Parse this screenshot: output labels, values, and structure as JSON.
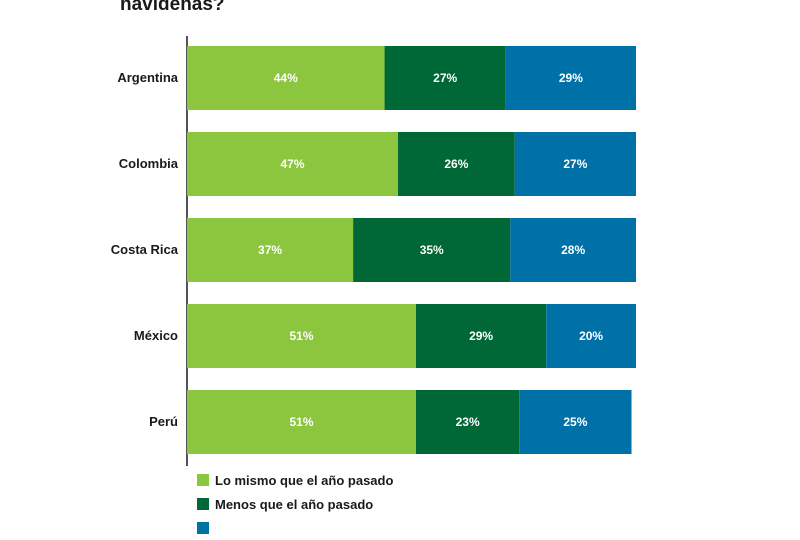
{
  "title": "navideñas?",
  "chart_data": {
    "type": "bar",
    "orientation": "horizontal",
    "stacked": true,
    "categories": [
      "Argentina",
      "Colombia",
      "Costa Rica",
      "México",
      "Perú"
    ],
    "series": [
      {
        "name": "Lo mismo que el año pasado",
        "color": "#8cc63f",
        "values": [
          44,
          47,
          37,
          51,
          51
        ]
      },
      {
        "name": "Menos que el año pasado",
        "color": "#006837",
        "values": [
          27,
          26,
          35,
          29,
          23
        ]
      },
      {
        "name": "",
        "color": "#0071a7",
        "values": [
          29,
          27,
          28,
          20,
          25
        ]
      }
    ],
    "value_suffix": "%",
    "xlim": [
      0,
      100
    ],
    "grid": false,
    "legend_position": "bottom-left"
  }
}
